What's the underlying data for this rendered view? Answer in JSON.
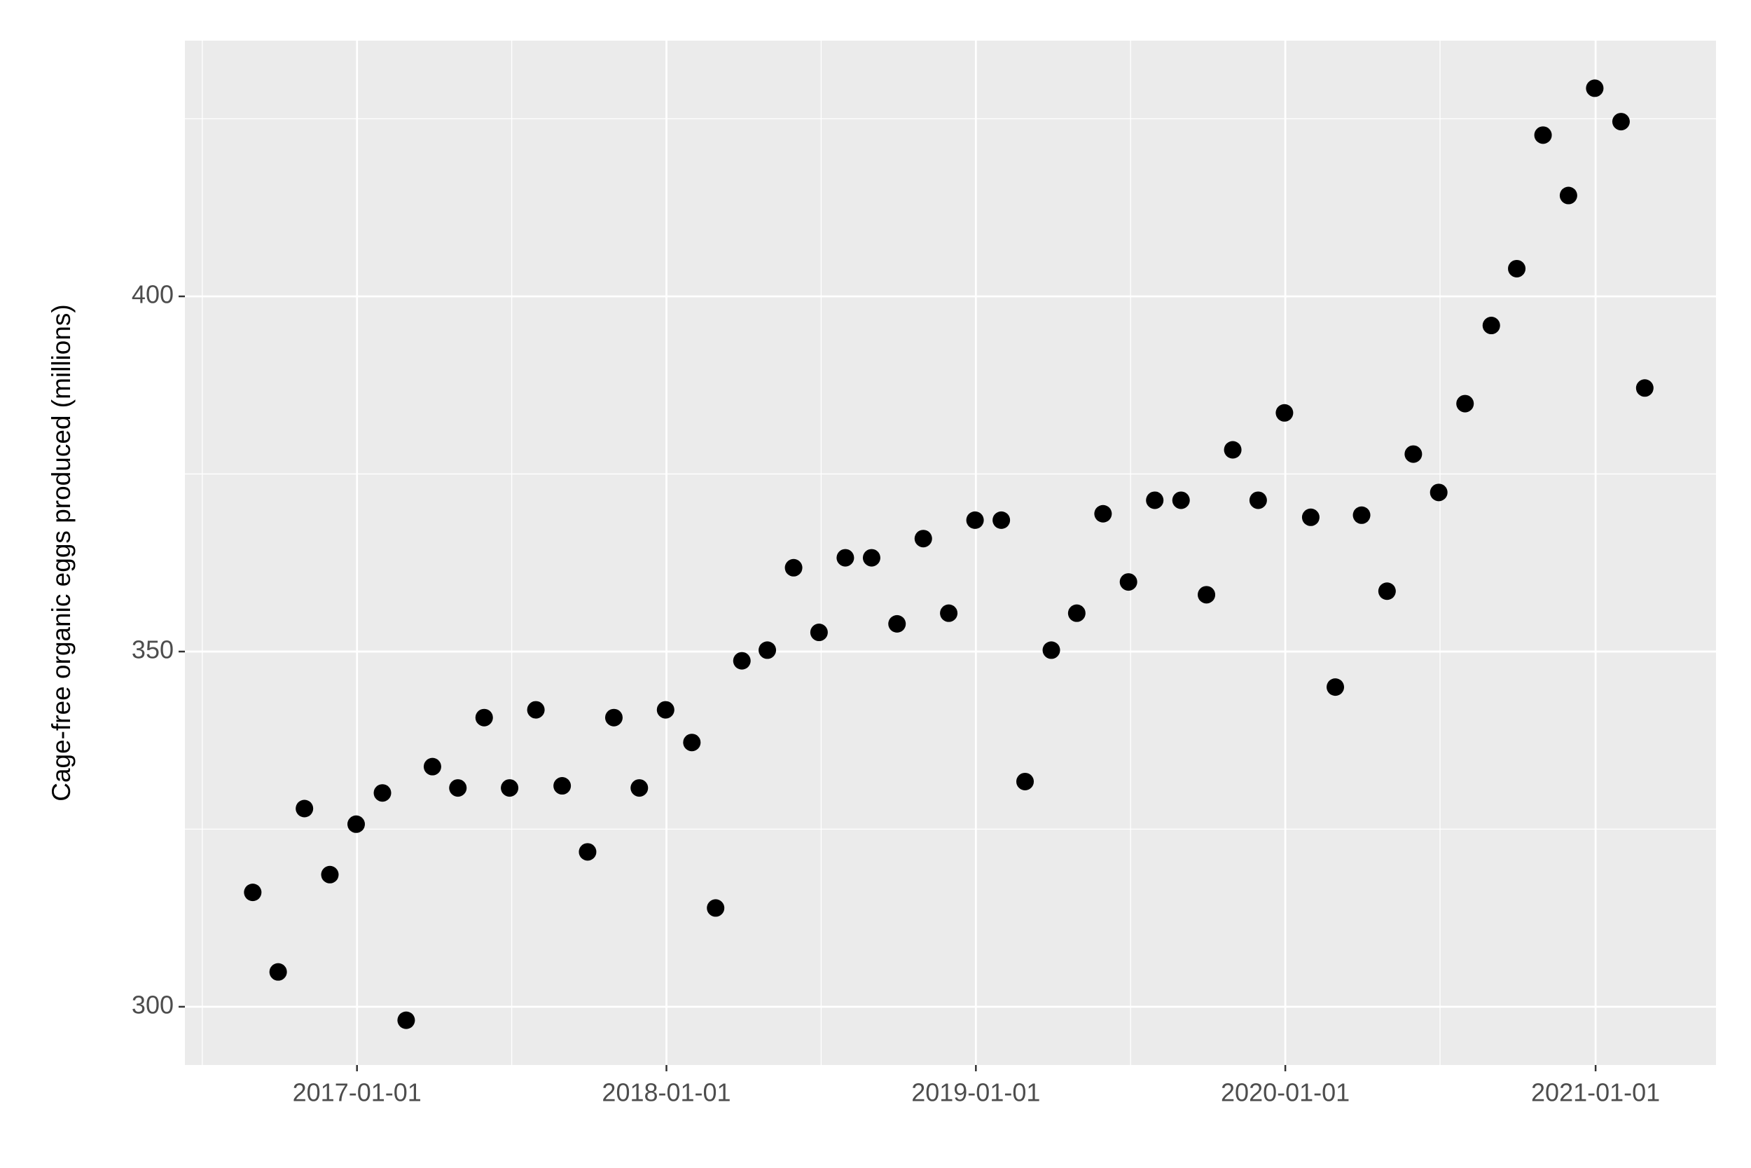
{
  "chart_data": {
    "type": "scatter",
    "y_label": "Cage-free organic eggs produced (millions)",
    "x": [
      "2016-08-31",
      "2016-09-30",
      "2016-10-31",
      "2016-11-30",
      "2016-12-31",
      "2017-01-31",
      "2017-02-28",
      "2017-03-31",
      "2017-04-30",
      "2017-05-31",
      "2017-06-30",
      "2017-07-31",
      "2017-08-31",
      "2017-09-30",
      "2017-10-31",
      "2017-11-30",
      "2017-12-31",
      "2018-01-31",
      "2018-02-28",
      "2018-03-31",
      "2018-04-30",
      "2018-05-31",
      "2018-06-30",
      "2018-07-31",
      "2018-08-31",
      "2018-09-30",
      "2018-10-31",
      "2018-11-30",
      "2018-12-31",
      "2019-01-31",
      "2019-02-28",
      "2019-03-31",
      "2019-04-30",
      "2019-05-31",
      "2019-06-30",
      "2019-07-31",
      "2019-08-31",
      "2019-09-30",
      "2019-10-31",
      "2019-11-30",
      "2019-12-31",
      "2020-01-31",
      "2020-02-29",
      "2020-03-31",
      "2020-04-30",
      "2020-05-31",
      "2020-06-30",
      "2020-07-31",
      "2020-08-31",
      "2020-09-30",
      "2020-10-31",
      "2020-11-30",
      "2020-12-31",
      "2021-01-31",
      "2021-02-28"
    ],
    "values": [
      316.1,
      304.9,
      327.9,
      318.6,
      325.7,
      330.1,
      298.1,
      333.8,
      330.8,
      340.7,
      330.8,
      341.8,
      331.1,
      321.8,
      340.7,
      330.8,
      341.8,
      337.2,
      313.9,
      348.7,
      350.2,
      361.8,
      352.7,
      363.2,
      363.2,
      353.9,
      365.9,
      355.4,
      368.5,
      368.5,
      331.7,
      350.2,
      355.4,
      369.4,
      359.8,
      371.3,
      371.3,
      358.0,
      378.4,
      371.3,
      383.6,
      368.9,
      345.0,
      369.2,
      358.5,
      377.8,
      372.4,
      384.9,
      395.9,
      403.9,
      422.7,
      414.2,
      429.3,
      424.6,
      387.1
    ],
    "color": "#000000",
    "xlim": [
      "2016-06-12",
      "2021-05-23"
    ],
    "xticks": [
      "2017-01-01",
      "2018-01-01",
      "2019-01-01",
      "2020-01-01",
      "2021-01-01"
    ],
    "ylim": [
      291.8,
      436.0
    ],
    "yticks": [
      300,
      350,
      400
    ],
    "grid": true,
    "minor_grid": true
  }
}
